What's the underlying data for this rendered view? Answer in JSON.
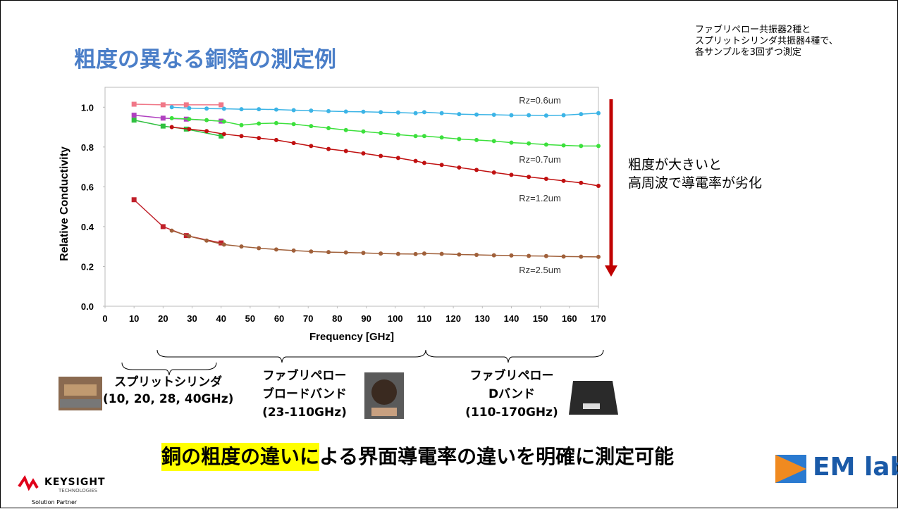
{
  "header": {
    "title": "粗度の異なる銅箔の測定例",
    "note": [
      "ファブリペロー共振器2種と",
      "スプリットシリンダ共振器4種で、",
      "各サンプルを3回ずつ測定"
    ]
  },
  "side_note": [
    "粗度が大きいと",
    "高周波で導電率が劣化"
  ],
  "chart_data": {
    "type": "line",
    "x_label": "Frequency [GHz]",
    "y_label": "Relative Conductivity",
    "xlim": [
      0,
      170
    ],
    "ylim": [
      0,
      1.1
    ],
    "xticks": [
      0,
      10,
      20,
      30,
      40,
      50,
      60,
      70,
      80,
      90,
      100,
      110,
      120,
      130,
      140,
      150,
      160,
      170
    ],
    "yticks": [
      {
        "value": 0,
        "label": "0.0"
      },
      0.2,
      0.4,
      0.6,
      0.8,
      {
        "value": 1,
        "label": "1.0"
      }
    ],
    "annotations": [
      "Rz=0.6um",
      "Rz=0.7um",
      "Rz=1.2um",
      "Rz=2.5um"
    ],
    "series": [
      {
        "color": "#f07888",
        "marker": "square",
        "x": [
          10,
          20,
          28,
          40
        ],
        "values": [
          1.015,
          1.012,
          1.012,
          1.012
        ]
      },
      {
        "color": "#3cb4e6",
        "marker": "circle",
        "x": [
          23,
          29,
          35,
          41,
          47,
          53,
          59,
          65,
          71,
          77,
          83,
          89,
          95,
          101,
          107,
          110,
          116,
          122,
          128,
          134,
          140,
          146,
          152,
          158,
          164,
          170
        ],
        "values": [
          1.0,
          0.995,
          0.993,
          0.992,
          0.99,
          0.99,
          0.988,
          0.985,
          0.983,
          0.98,
          0.978,
          0.977,
          0.975,
          0.973,
          0.97,
          0.975,
          0.97,
          0.965,
          0.963,
          0.962,
          0.96,
          0.96,
          0.958,
          0.96,
          0.965,
          0.97
        ]
      },
      {
        "color": "#b040c0",
        "marker": "square",
        "x": [
          10,
          20,
          28,
          40
        ],
        "values": [
          0.96,
          0.945,
          0.94,
          0.93
        ]
      },
      {
        "color": "#3ce03c",
        "marker": "circle",
        "x": [
          23,
          29,
          35,
          41,
          47,
          53,
          59,
          65,
          71,
          77,
          83,
          89,
          95,
          101,
          107,
          110,
          116,
          122,
          128,
          134,
          140,
          146,
          152,
          158,
          164,
          170
        ],
        "values": [
          0.945,
          0.94,
          0.935,
          0.928,
          0.91,
          0.918,
          0.92,
          0.915,
          0.905,
          0.895,
          0.885,
          0.878,
          0.87,
          0.862,
          0.855,
          0.855,
          0.848,
          0.84,
          0.835,
          0.83,
          0.822,
          0.818,
          0.812,
          0.808,
          0.805,
          0.805
        ]
      },
      {
        "color": "#30c040",
        "marker": "square",
        "x": [
          10,
          20,
          28,
          40
        ],
        "values": [
          0.935,
          0.905,
          0.89,
          0.855
        ]
      },
      {
        "color": "#c01010",
        "marker": "circle",
        "x": [
          23,
          29,
          35,
          41,
          47,
          53,
          59,
          65,
          71,
          77,
          83,
          89,
          95,
          101,
          107,
          110,
          116,
          122,
          128,
          134,
          140,
          146,
          152,
          158,
          164,
          170
        ],
        "values": [
          0.9,
          0.89,
          0.88,
          0.865,
          0.855,
          0.845,
          0.835,
          0.82,
          0.805,
          0.79,
          0.78,
          0.768,
          0.755,
          0.745,
          0.73,
          0.72,
          0.71,
          0.697,
          0.685,
          0.672,
          0.66,
          0.65,
          0.64,
          0.63,
          0.62,
          0.605
        ]
      },
      {
        "color": "#c0202a",
        "marker": "square",
        "x": [
          10,
          20,
          28,
          40
        ],
        "values": [
          0.535,
          0.4,
          0.355,
          0.318
        ]
      },
      {
        "color": "#a0603a",
        "marker": "circle",
        "x": [
          23,
          29,
          35,
          41,
          47,
          53,
          59,
          65,
          71,
          77,
          83,
          89,
          95,
          101,
          107,
          110,
          116,
          122,
          128,
          134,
          140,
          146,
          152,
          158,
          164,
          170
        ],
        "values": [
          0.38,
          0.352,
          0.33,
          0.31,
          0.3,
          0.292,
          0.285,
          0.28,
          0.275,
          0.272,
          0.27,
          0.268,
          0.265,
          0.263,
          0.262,
          0.265,
          0.263,
          0.26,
          0.258,
          0.256,
          0.255,
          0.253,
          0.252,
          0.25,
          0.249,
          0.248
        ]
      }
    ]
  },
  "instruments": [
    {
      "lines": [
        "スプリットシリンダ",
        "(10, 20, 28, 40GHz)"
      ]
    },
    {
      "lines": [
        "ファブリペロー",
        "ブロードバンド",
        "(23-110GHz)"
      ]
    },
    {
      "lines": [
        "ファブリペロー",
        "Dバンド",
        "(110-170GHz)"
      ]
    }
  ],
  "tagline": {
    "highlight": "銅の粗度の違い",
    "rest": "による界面導電率の違いを明確に測定可能"
  },
  "logos": {
    "keysight": "KEYSIGHT",
    "technologies": "TECHNOLOGIES",
    "partner": "Solution Partner",
    "emlabs": "EM labs"
  }
}
